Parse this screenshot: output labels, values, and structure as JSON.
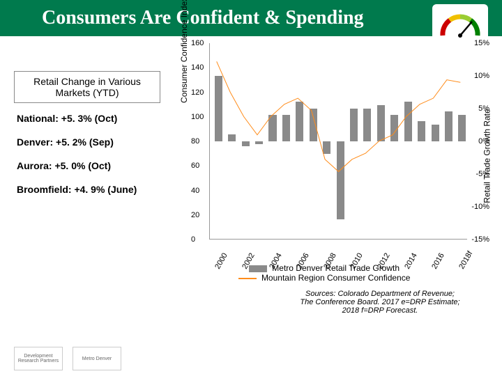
{
  "header": {
    "title": "Consumers Are Confident & Spending"
  },
  "left_panel": {
    "box_label": "Retail Change in Various Markets (YTD)",
    "stats": [
      "National: +5. 3% (Oct)",
      "Denver: +5. 2% (Sep)",
      "Aurora: +5. 0% (Oct)",
      "Broomfield: +4. 9% (June)"
    ]
  },
  "chart": {
    "type": "combo-bar-line",
    "left_axis": {
      "label": "Consumer Confidence Index",
      "min": 0,
      "max": 160,
      "step": 20,
      "ticks": [
        0,
        20,
        40,
        60,
        80,
        100,
        120,
        140,
        160
      ]
    },
    "right_axis": {
      "label": "Retail Trade Growth Rate",
      "min": -15,
      "max": 15,
      "step": 5,
      "ticks": [
        "-15%",
        "-10%",
        "-5%",
        "0%",
        "5%",
        "10%",
        "15%"
      ],
      "tick_vals": [
        -15,
        -10,
        -5,
        0,
        5,
        10,
        15
      ]
    },
    "x_labels": [
      "2000",
      "2002",
      "2004",
      "2006",
      "2008",
      "2010",
      "2012",
      "2014",
      "2016",
      "2018f"
    ],
    "x_years": [
      2000,
      2001,
      2002,
      2003,
      2004,
      2005,
      2006,
      2007,
      2008,
      2009,
      2010,
      2011,
      2012,
      2013,
      2014,
      2015,
      2016,
      2017,
      2018
    ],
    "bars": {
      "name": "Metro Denver Retail Trade Growth",
      "color": "#8a8a8a",
      "values": [
        10,
        1,
        -0.8,
        -0.5,
        4,
        4,
        6,
        5,
        -2,
        -12,
        5,
        5,
        5.5,
        4,
        6,
        3,
        2.5,
        4.5,
        4
      ]
    },
    "line": {
      "name": "Mountain Region Consumer Confidence",
      "color": "#ff8c1a",
      "width": 2,
      "values": [
        145,
        120,
        100,
        85,
        100,
        110,
        115,
        105,
        65,
        55,
        65,
        70,
        80,
        85,
        100,
        110,
        115,
        130,
        128
      ]
    },
    "bg": "#ffffff"
  },
  "legend": {
    "bar_label": "Metro Denver Retail Trade Growth",
    "line_label": "Mountain Region Consumer Confidence"
  },
  "sources": "Sources: Colorado Department of Revenue; The Conference Board. 2017 e=DRP Estimate; 2018 f=DRP Forecast.",
  "logos": [
    "Development Research Partners",
    "Metro Denver"
  ]
}
